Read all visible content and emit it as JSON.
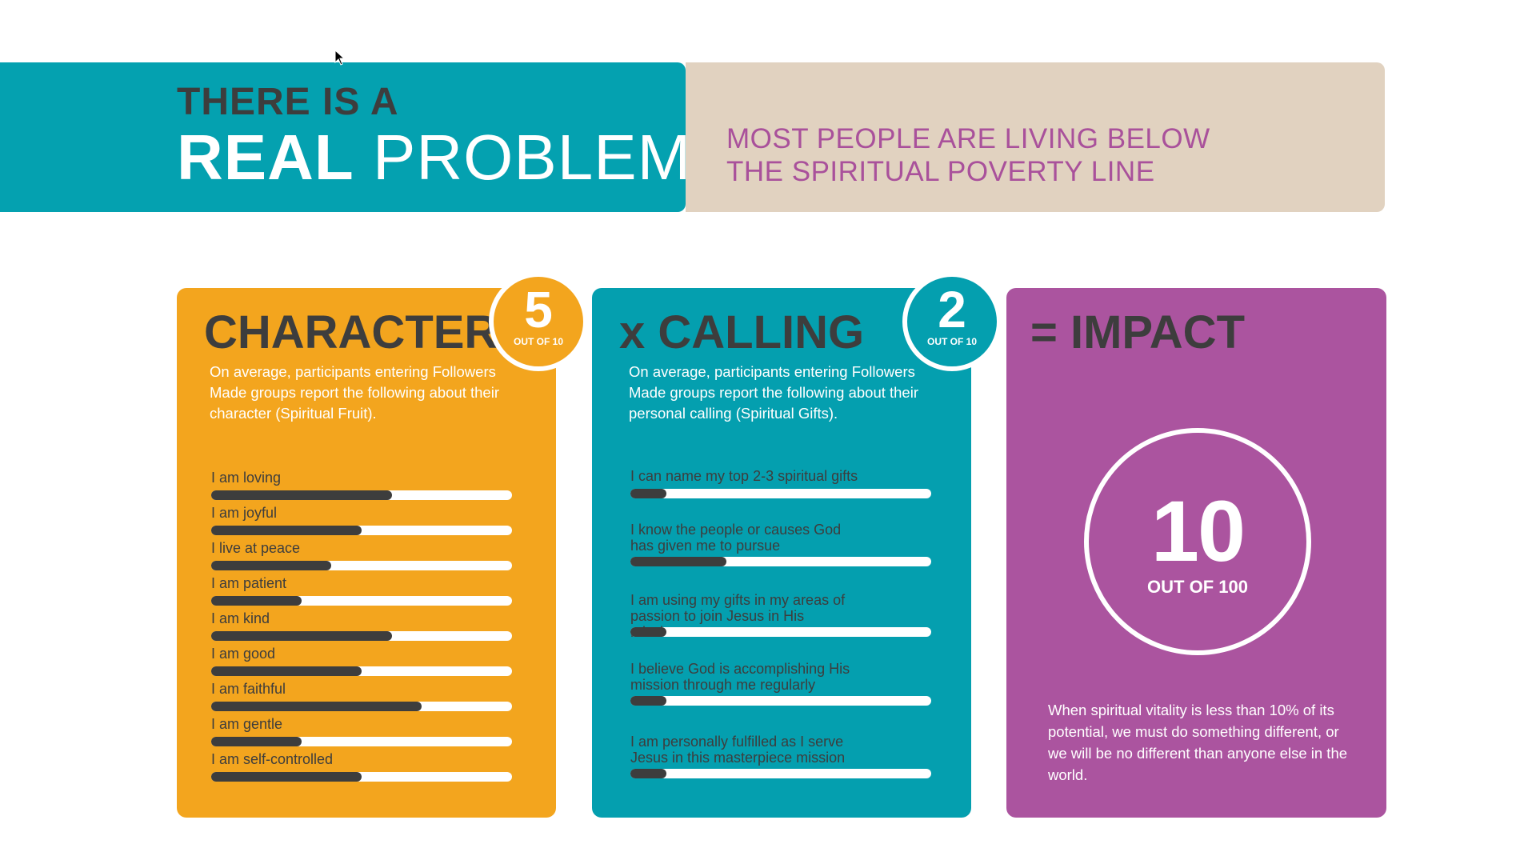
{
  "header": {
    "line1": "THERE IS A",
    "line2_bold": "REAL",
    "line2_rest": "PROBLEM",
    "subtitle_line1": "MOST PEOPLE ARE LIVING BELOW",
    "subtitle_line2": "THE SPIRITUAL POVERTY LINE"
  },
  "character": {
    "title": "CHARACTER",
    "score": "5",
    "score_suffix": "OUT OF 10",
    "description": "On average, participants entering Followers Made groups report the following about their character (Spiritual Fruit).",
    "items": [
      {
        "label": "I am loving",
        "fill": 0.6
      },
      {
        "label": "I am joyful",
        "fill": 0.5
      },
      {
        "label": "I live at peace",
        "fill": 0.4
      },
      {
        "label": "I am patient",
        "fill": 0.3
      },
      {
        "label": "I am kind",
        "fill": 0.6
      },
      {
        "label": "I am good",
        "fill": 0.5
      },
      {
        "label": "I am faithful",
        "fill": 0.7
      },
      {
        "label": "I am gentle",
        "fill": 0.3
      },
      {
        "label": "I am self-controlled",
        "fill": 0.5
      }
    ]
  },
  "calling": {
    "title": "x CALLING",
    "score": "2",
    "score_suffix": "OUT OF 10",
    "description": "On average, participants entering Followers Made groups report the following about their personal calling (Spiritual Gifts).",
    "items": [
      {
        "label": "I can name my top 2-3 spiritual gifts",
        "fill": 0.12
      },
      {
        "label": "I know the people or causes God has given me to pursue",
        "fill": 0.32
      },
      {
        "label": "I am using my gifts in my areas of passion to join Jesus in His mission",
        "fill": 0.12
      },
      {
        "label": "I believe God is accomplishing His mission through me regularly",
        "fill": 0.12
      },
      {
        "label": "I am personally fulfilled as I serve Jesus in this masterpiece mission",
        "fill": 0.12
      }
    ]
  },
  "impact": {
    "title": "= IMPACT",
    "score": "10",
    "score_suffix": "OUT OF 100",
    "note": "When spiritual vitality is less than 10% of its potential, we must do something different, or we will be no different than anyone else in the world."
  },
  "colors": {
    "teal": "#04a1b0",
    "beige": "#e1d2c0",
    "orange": "#f3a51e",
    "purple": "#ab549f",
    "dark": "#3d3d3d",
    "magenta_text": "#a9519b"
  }
}
